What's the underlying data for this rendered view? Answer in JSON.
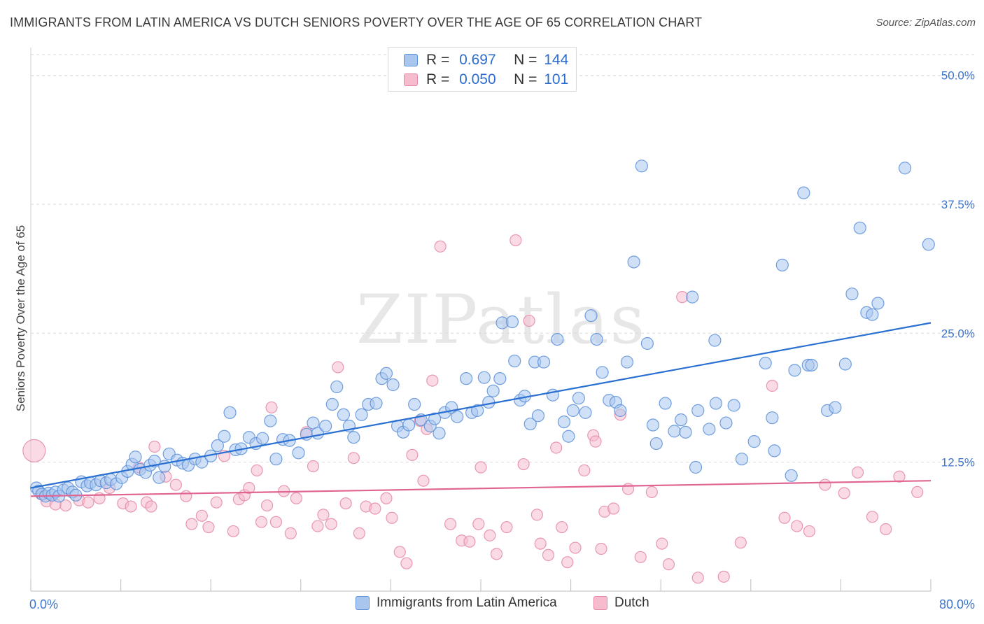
{
  "title": "IMMIGRANTS FROM LATIN AMERICA VS DUTCH SENIORS POVERTY OVER THE AGE OF 65 CORRELATION CHART",
  "source": "Source: ZipAtlas.com",
  "watermark": "ZIPatlas",
  "colors": {
    "blue_fill": "#a9c7ee",
    "blue_stroke": "#5b8fd8",
    "blue_line": "#2a6fd2",
    "pink_fill": "#f6bccd",
    "pink_stroke": "#e488a6",
    "pink_line": "#e06592",
    "axis_text": "#3f74cc",
    "grid": "#d9d9d9"
  },
  "legend": {
    "r_label": "R =",
    "n_label": "N =",
    "series1": {
      "r": "0.697",
      "n": "144"
    },
    "series2": {
      "r": "0.050",
      "n": "101"
    }
  },
  "chart_data": {
    "type": "scatter",
    "title": "IMMIGRANTS FROM LATIN AMERICA VS DUTCH SENIORS POVERTY OVER THE AGE OF 65 CORRELATION CHART",
    "xlabel": "",
    "ylabel": "Seniors Poverty Over the Age of 65",
    "xlim": [
      0,
      80
    ],
    "ylim": [
      0,
      52
    ],
    "x_tick_labels": [
      "0.0%",
      "80.0%"
    ],
    "y_ticks": [
      12.5,
      25.0,
      37.5,
      50.0
    ],
    "y_tick_labels": [
      "12.5%",
      "25.0%",
      "37.5%",
      "50.0%"
    ],
    "grid": true,
    "legend_position": "top-center",
    "series": [
      {
        "name": "Immigrants from Latin America",
        "r": 0.697,
        "n": 144,
        "trend": {
          "x": [
            0,
            80
          ],
          "y": [
            10.0,
            26.0
          ]
        },
        "points": [
          [
            0.5,
            10.0
          ],
          [
            0.7,
            9.7
          ],
          [
            1.0,
            9.4
          ],
          [
            1.3,
            9.2
          ],
          [
            1.6,
            9.5
          ],
          [
            1.9,
            9.3
          ],
          [
            2.2,
            9.6
          ],
          [
            2.5,
            9.2
          ],
          [
            2.9,
            9.8
          ],
          [
            3.3,
            10.0
          ],
          [
            3.7,
            9.6
          ],
          [
            4.0,
            9.3
          ],
          [
            4.5,
            10.6
          ],
          [
            5.0,
            10.2
          ],
          [
            5.3,
            10.5
          ],
          [
            5.8,
            10.3
          ],
          [
            6.2,
            10.7
          ],
          [
            6.7,
            10.5
          ],
          [
            7.1,
            10.8
          ],
          [
            7.6,
            10.4
          ],
          [
            8.1,
            11.0
          ],
          [
            8.6,
            11.6
          ],
          [
            9.0,
            12.3
          ],
          [
            9.3,
            13.0
          ],
          [
            9.7,
            11.8
          ],
          [
            10.2,
            11.5
          ],
          [
            10.6,
            12.2
          ],
          [
            11.0,
            12.6
          ],
          [
            11.4,
            11.0
          ],
          [
            11.9,
            12.1
          ],
          [
            12.3,
            13.3
          ],
          [
            13.0,
            12.7
          ],
          [
            13.5,
            12.4
          ],
          [
            14.0,
            12.2
          ],
          [
            14.6,
            12.8
          ],
          [
            15.2,
            12.5
          ],
          [
            16.0,
            13.1
          ],
          [
            16.6,
            14.1
          ],
          [
            17.2,
            15.0
          ],
          [
            17.7,
            17.3
          ],
          [
            18.2,
            13.7
          ],
          [
            18.7,
            13.8
          ],
          [
            19.4,
            14.9
          ],
          [
            20.0,
            14.3
          ],
          [
            20.6,
            14.8
          ],
          [
            21.3,
            16.5
          ],
          [
            21.8,
            12.8
          ],
          [
            22.4,
            14.7
          ],
          [
            23.0,
            14.6
          ],
          [
            23.8,
            13.4
          ],
          [
            24.5,
            15.2
          ],
          [
            25.1,
            16.3
          ],
          [
            25.5,
            15.3
          ],
          [
            26.2,
            16.0
          ],
          [
            26.8,
            18.1
          ],
          [
            27.2,
            19.8
          ],
          [
            27.8,
            17.1
          ],
          [
            28.3,
            16.0
          ],
          [
            28.7,
            14.9
          ],
          [
            29.4,
            17.1
          ],
          [
            30.0,
            18.1
          ],
          [
            30.7,
            18.2
          ],
          [
            31.2,
            20.6
          ],
          [
            31.6,
            21.1
          ],
          [
            32.2,
            20.0
          ],
          [
            32.6,
            16.0
          ],
          [
            33.1,
            15.4
          ],
          [
            33.6,
            16.1
          ],
          [
            34.1,
            18.1
          ],
          [
            34.7,
            16.6
          ],
          [
            35.5,
            16.0
          ],
          [
            35.9,
            16.7
          ],
          [
            36.3,
            15.3
          ],
          [
            36.8,
            17.3
          ],
          [
            37.4,
            17.8
          ],
          [
            37.9,
            16.9
          ],
          [
            38.7,
            20.6
          ],
          [
            39.2,
            17.3
          ],
          [
            39.7,
            17.5
          ],
          [
            40.3,
            20.7
          ],
          [
            40.7,
            18.3
          ],
          [
            41.1,
            19.4
          ],
          [
            41.7,
            20.6
          ],
          [
            41.9,
            26.0
          ],
          [
            42.8,
            26.1
          ],
          [
            43.0,
            22.3
          ],
          [
            43.5,
            18.5
          ],
          [
            43.9,
            18.9
          ],
          [
            44.4,
            16.2
          ],
          [
            44.8,
            22.2
          ],
          [
            45.1,
            17.0
          ],
          [
            45.6,
            22.2
          ],
          [
            46.4,
            19.0
          ],
          [
            46.8,
            24.4
          ],
          [
            47.4,
            16.4
          ],
          [
            47.8,
            15.0
          ],
          [
            48.2,
            17.5
          ],
          [
            48.7,
            18.7
          ],
          [
            49.3,
            17.3
          ],
          [
            49.8,
            26.7
          ],
          [
            50.3,
            24.4
          ],
          [
            50.8,
            21.2
          ],
          [
            51.4,
            18.5
          ],
          [
            52.0,
            18.3
          ],
          [
            52.4,
            17.5
          ],
          [
            53.0,
            22.2
          ],
          [
            53.6,
            31.9
          ],
          [
            54.3,
            41.2
          ],
          [
            54.8,
            24.0
          ],
          [
            55.3,
            16.1
          ],
          [
            55.6,
            14.3
          ],
          [
            56.4,
            18.2
          ],
          [
            57.2,
            15.5
          ],
          [
            57.8,
            16.6
          ],
          [
            58.2,
            15.4
          ],
          [
            58.8,
            28.5
          ],
          [
            59.1,
            12.0
          ],
          [
            59.3,
            17.5
          ],
          [
            60.3,
            15.7
          ],
          [
            60.8,
            24.3
          ],
          [
            60.9,
            18.2
          ],
          [
            61.8,
            16.3
          ],
          [
            62.5,
            18.0
          ],
          [
            63.2,
            12.8
          ],
          [
            64.3,
            14.5
          ],
          [
            65.3,
            22.1
          ],
          [
            65.9,
            16.8
          ],
          [
            66.1,
            13.6
          ],
          [
            66.8,
            31.6
          ],
          [
            67.6,
            11.2
          ],
          [
            67.9,
            21.4
          ],
          [
            68.7,
            38.6
          ],
          [
            69.1,
            21.9
          ],
          [
            69.4,
            21.9
          ],
          [
            70.8,
            17.5
          ],
          [
            71.5,
            17.8
          ],
          [
            72.4,
            22.0
          ],
          [
            73.0,
            28.8
          ],
          [
            73.7,
            35.2
          ],
          [
            74.3,
            27.0
          ],
          [
            74.8,
            26.8
          ],
          [
            75.3,
            27.9
          ],
          [
            77.7,
            41.0
          ],
          [
            79.8,
            33.6
          ]
        ]
      },
      {
        "name": "Dutch",
        "r": 0.05,
        "n": 101,
        "trend": {
          "x": [
            0,
            80
          ],
          "y": [
            9.2,
            10.7
          ]
        },
        "points": [
          [
            0.3,
            13.6
          ],
          [
            0.9,
            9.4
          ],
          [
            1.4,
            8.7
          ],
          [
            2.2,
            8.4
          ],
          [
            3.1,
            8.3
          ],
          [
            4.3,
            8.8
          ],
          [
            5.1,
            8.6
          ],
          [
            6.1,
            9.0
          ],
          [
            7.0,
            10.0
          ],
          [
            8.2,
            8.5
          ],
          [
            8.9,
            8.2
          ],
          [
            9.6,
            12.0
          ],
          [
            10.3,
            8.6
          ],
          [
            10.7,
            8.2
          ],
          [
            11.0,
            14.0
          ],
          [
            12.0,
            11.1
          ],
          [
            12.9,
            10.3
          ],
          [
            13.8,
            9.2
          ],
          [
            14.3,
            6.5
          ],
          [
            15.2,
            7.3
          ],
          [
            15.8,
            6.2
          ],
          [
            16.5,
            8.6
          ],
          [
            17.2,
            13.1
          ],
          [
            18.0,
            5.8
          ],
          [
            18.5,
            8.9
          ],
          [
            19.0,
            9.3
          ],
          [
            19.4,
            10.0
          ],
          [
            20.1,
            11.7
          ],
          [
            20.5,
            6.7
          ],
          [
            21.0,
            8.3
          ],
          [
            21.4,
            17.8
          ],
          [
            21.8,
            6.7
          ],
          [
            22.5,
            9.7
          ],
          [
            23.1,
            5.6
          ],
          [
            23.6,
            9.0
          ],
          [
            24.5,
            15.4
          ],
          [
            25.1,
            12.1
          ],
          [
            25.5,
            6.3
          ],
          [
            26.0,
            7.4
          ],
          [
            26.7,
            6.5
          ],
          [
            27.3,
            21.7
          ],
          [
            28.0,
            8.5
          ],
          [
            28.7,
            12.9
          ],
          [
            29.2,
            5.6
          ],
          [
            29.8,
            8.2
          ],
          [
            30.6,
            8.0
          ],
          [
            31.6,
            9.0
          ],
          [
            32.1,
            7.1
          ],
          [
            32.8,
            3.8
          ],
          [
            33.4,
            2.7
          ],
          [
            33.9,
            13.2
          ],
          [
            34.6,
            16.5
          ],
          [
            34.9,
            10.7
          ],
          [
            35.2,
            15.7
          ],
          [
            35.7,
            20.4
          ],
          [
            36.4,
            33.4
          ],
          [
            37.3,
            6.5
          ],
          [
            38.3,
            4.9
          ],
          [
            39.0,
            4.8
          ],
          [
            39.8,
            6.5
          ],
          [
            40.0,
            12.0
          ],
          [
            40.8,
            5.4
          ],
          [
            41.4,
            3.6
          ],
          [
            42.3,
            6.2
          ],
          [
            43.1,
            34.0
          ],
          [
            43.8,
            12.3
          ],
          [
            44.3,
            26.2
          ],
          [
            45.0,
            7.4
          ],
          [
            45.3,
            4.6
          ],
          [
            46.0,
            3.5
          ],
          [
            46.7,
            13.9
          ],
          [
            47.2,
            6.2
          ],
          [
            47.7,
            2.8
          ],
          [
            48.4,
            4.2
          ],
          [
            49.2,
            11.7
          ],
          [
            50.0,
            15.1
          ],
          [
            50.2,
            14.5
          ],
          [
            50.7,
            4.1
          ],
          [
            51.0,
            7.7
          ],
          [
            51.8,
            8.0
          ],
          [
            52.4,
            17.1
          ],
          [
            53.1,
            9.9
          ],
          [
            54.2,
            3.3
          ],
          [
            55.2,
            9.6
          ],
          [
            56.1,
            4.6
          ],
          [
            56.7,
            2.6
          ],
          [
            57.9,
            28.5
          ],
          [
            59.3,
            1.3
          ],
          [
            61.6,
            1.4
          ],
          [
            63.1,
            4.7
          ],
          [
            65.9,
            19.9
          ],
          [
            67.0,
            7.1
          ],
          [
            68.1,
            6.3
          ],
          [
            69.2,
            5.8
          ],
          [
            70.6,
            10.3
          ],
          [
            72.3,
            9.5
          ],
          [
            73.5,
            11.5
          ],
          [
            74.8,
            7.2
          ],
          [
            76.0,
            6.0
          ],
          [
            77.2,
            11.1
          ],
          [
            78.8,
            9.6
          ]
        ]
      }
    ]
  }
}
